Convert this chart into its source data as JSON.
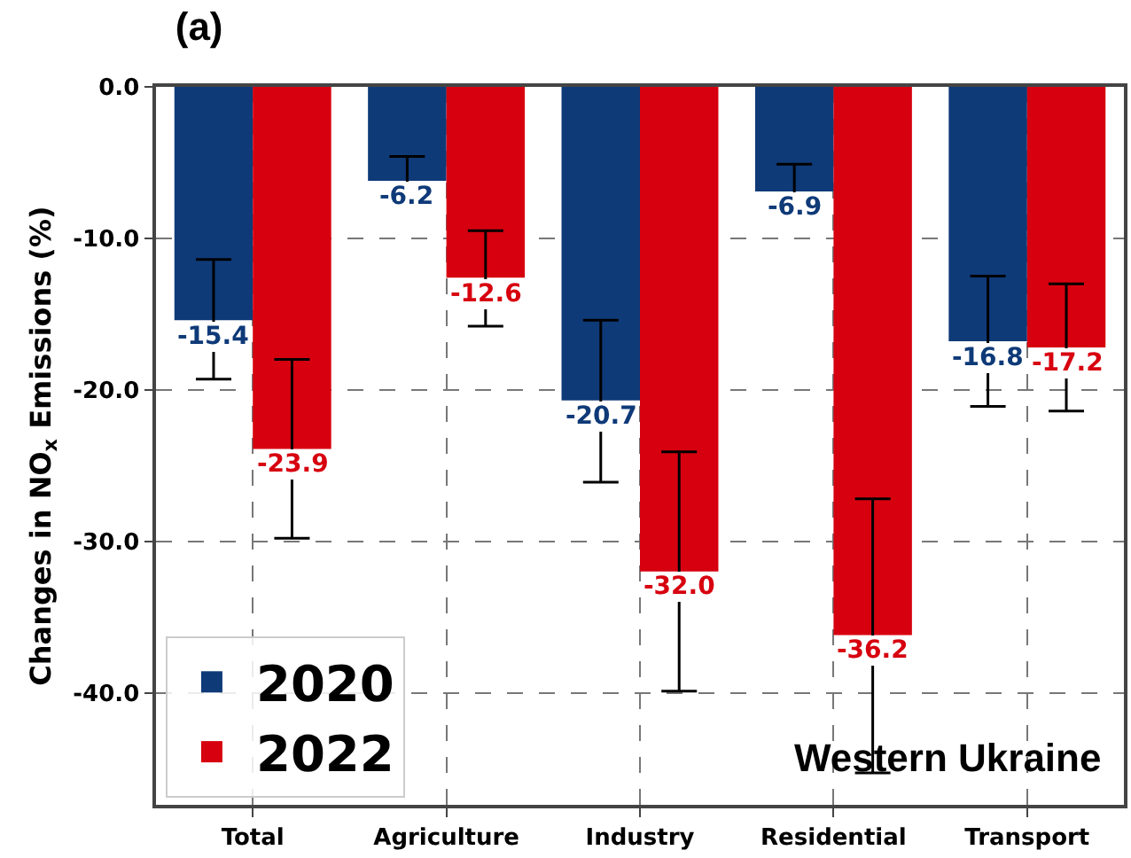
{
  "chart_data": {
    "type": "bar",
    "title": "(a)",
    "ylabel": "Changes in NO$_{x}$ Emissions (%)",
    "categories": [
      "Total",
      "Agriculture",
      "Industry",
      "Residential",
      "Transport"
    ],
    "series": [
      {
        "name": "2020",
        "color": "#0f3a78",
        "values": [
          -15.4,
          -6.2,
          -20.7,
          -6.9,
          -16.8
        ],
        "value_labels": [
          "-15.4",
          "-6.2",
          "-20.7",
          "-6.9",
          "-16.8"
        ],
        "errors": [
          [
            -19.3,
            -11.4
          ],
          [
            -7.9,
            -4.6
          ],
          [
            -26.1,
            -15.4
          ],
          [
            -8.6,
            -5.1
          ],
          [
            -21.1,
            -12.5
          ]
        ]
      },
      {
        "name": "2022",
        "color": "#d7000f",
        "values": [
          -23.9,
          -12.6,
          -32.0,
          -36.2,
          -17.2
        ],
        "value_labels": [
          "-23.9",
          "-12.6",
          "-32.0",
          "-36.2",
          "-17.2"
        ],
        "errors": [
          [
            -29.8,
            -18.0
          ],
          [
            -15.8,
            -9.5
          ],
          [
            -39.9,
            -24.1
          ],
          [
            -45.3,
            -27.2
          ],
          [
            -21.4,
            -13.0
          ]
        ]
      }
    ],
    "ylim": [
      -47.4,
      0
    ],
    "yticks": [
      {
        "value": 0,
        "label": "0.0"
      },
      {
        "value": -10,
        "label": "-10.0"
      },
      {
        "value": -20,
        "label": "-20.0"
      },
      {
        "value": -30,
        "label": "-30.0"
      },
      {
        "value": -40,
        "label": "-40.0"
      }
    ],
    "grid": true,
    "legend": "bottom left",
    "annotations": [
      "Western Ukraine"
    ]
  }
}
